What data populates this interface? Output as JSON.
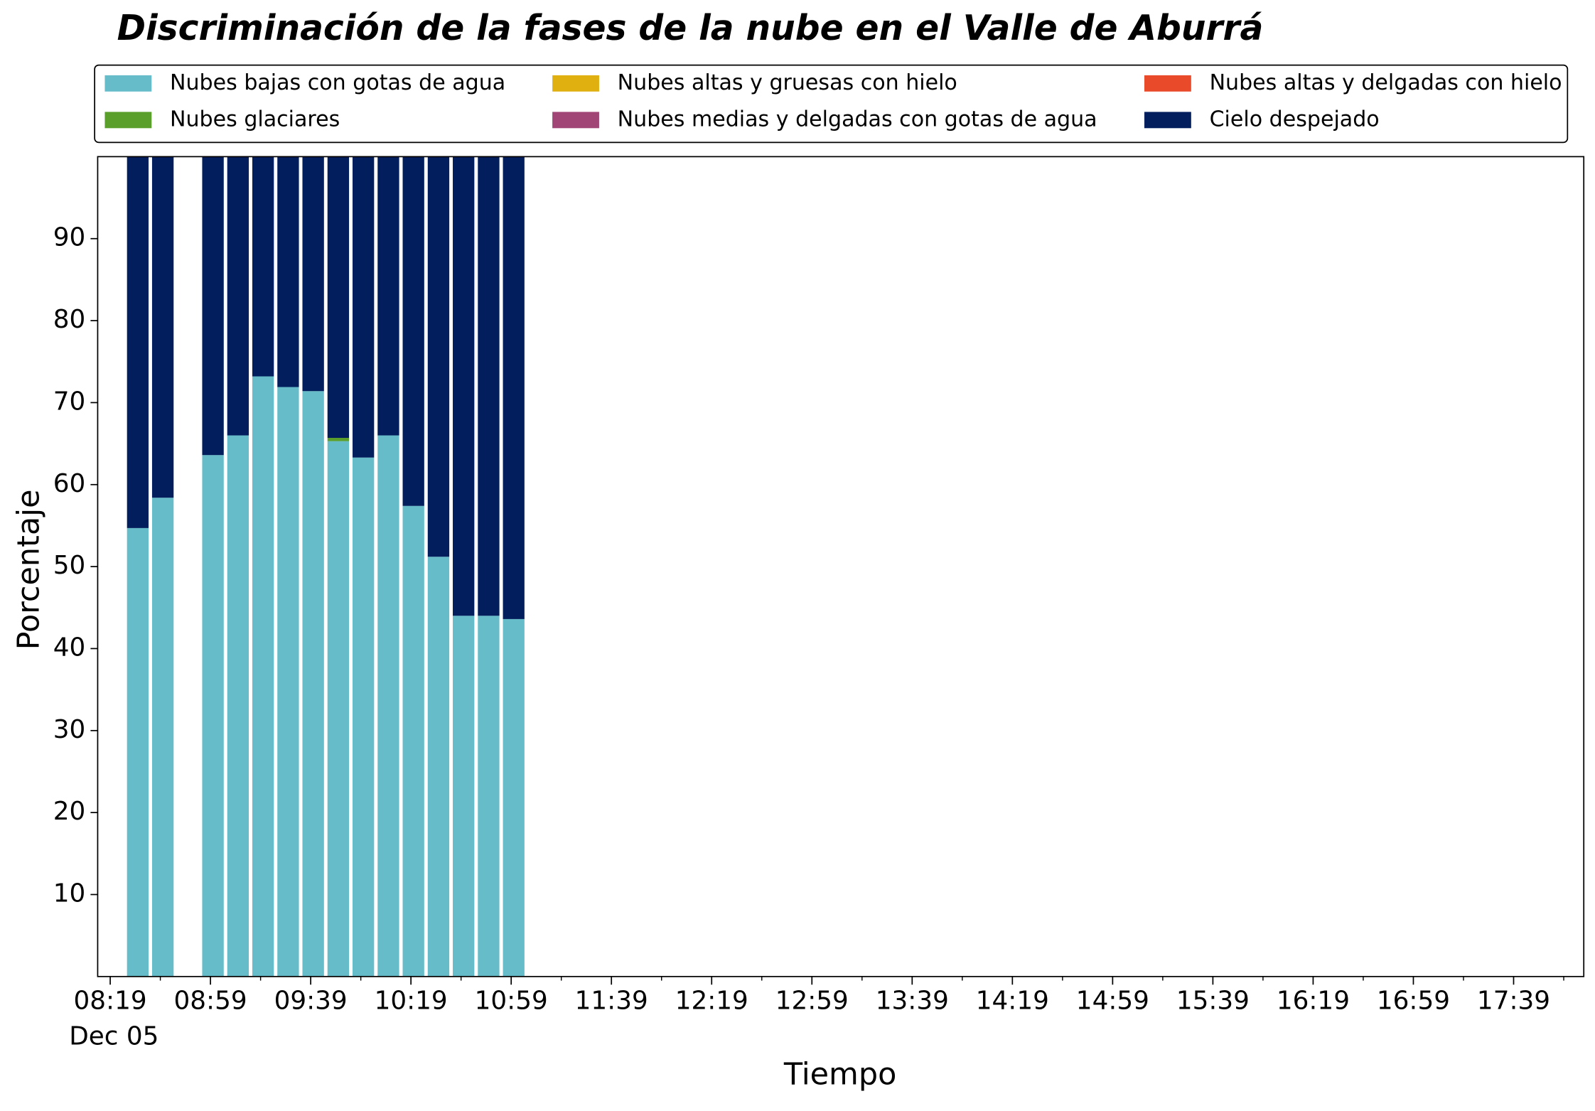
{
  "chart_data": {
    "type": "bar",
    "stacked": true,
    "title": "Discriminación de la fases de la nube en el Valle de Aburrá",
    "xlabel": "Tiempo",
    "ylabel": "Porcentaje",
    "x_date_label": "Dec 05",
    "x": [
      "08:30",
      "08:40",
      "09:00",
      "09:10",
      "09:20",
      "09:30",
      "09:40",
      "09:50",
      "10:00",
      "10:10",
      "10:20",
      "10:30",
      "10:40",
      "10:50",
      "11:00"
    ],
    "series": [
      {
        "name": "Nubes bajas con gotas de agua",
        "color": "#66bdc9",
        "values": [
          54.7,
          58.4,
          63.6,
          66.0,
          73.2,
          71.9,
          71.4,
          65.3,
          63.3,
          66.0,
          57.4,
          51.2,
          44.0,
          44.0,
          43.6
        ]
      },
      {
        "name": "Nubes glaciares",
        "color": "#5a9e2b",
        "values": [
          0,
          0,
          0,
          0,
          0,
          0,
          0,
          0.4,
          0,
          0,
          0,
          0,
          0,
          0,
          0
        ]
      },
      {
        "name": "Nubes altas y gruesas con hielo",
        "color": "#e0b011",
        "values": [
          0,
          0,
          0,
          0,
          0,
          0,
          0,
          0,
          0,
          0,
          0,
          0,
          0,
          0,
          0
        ]
      },
      {
        "name": "Nubes medias y delgadas con gotas de agua",
        "color": "#a04576",
        "values": [
          0,
          0,
          0,
          0,
          0,
          0,
          0,
          0,
          0,
          0,
          0,
          0,
          0,
          0,
          0
        ]
      },
      {
        "name": "Nubes altas y delgadas con hielo",
        "color": "#e84a2a",
        "values": [
          0,
          0,
          0,
          0,
          0,
          0,
          0,
          0,
          0,
          0,
          0,
          0,
          0,
          0,
          0
        ]
      },
      {
        "name": "Cielo despejado",
        "color": "#021e5c",
        "values": [
          45.3,
          41.6,
          36.4,
          34.0,
          26.8,
          28.1,
          28.6,
          34.3,
          36.7,
          34.0,
          42.6,
          48.8,
          56.0,
          56.0,
          56.4
        ]
      }
    ],
    "xlim": [
      "08:14",
      "18:07"
    ],
    "xticks": [
      "08:19",
      "08:59",
      "09:39",
      "10:19",
      "10:59",
      "11:39",
      "12:19",
      "12:59",
      "13:39",
      "14:19",
      "14:59",
      "15:39",
      "16:19",
      "16:59",
      "17:39"
    ],
    "xminorticks": [
      "08:39",
      "09:19",
      "09:59",
      "10:39",
      "11:19",
      "11:59",
      "12:39",
      "13:19",
      "13:59",
      "14:39",
      "15:19",
      "15:59",
      "16:39",
      "17:19",
      "17:59"
    ],
    "ylim": [
      0,
      100
    ],
    "yticks": [
      10,
      20,
      30,
      40,
      50,
      60,
      70,
      80,
      90
    ],
    "grid": false,
    "legend": "top",
    "legend_columns": 3
  }
}
